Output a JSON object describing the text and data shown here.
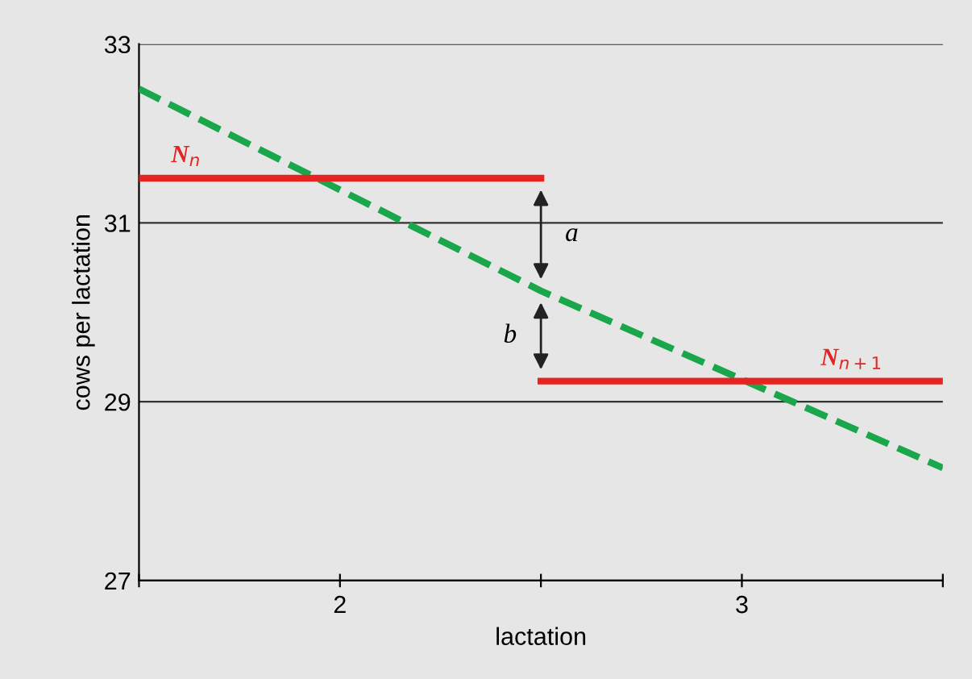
{
  "chart_data": {
    "type": "line",
    "xlabel": "lactation",
    "ylabel": "cows per lactation",
    "xlim": [
      1.5,
      3.5
    ],
    "xticks": [
      {
        "value": 1.5,
        "label": null
      },
      2,
      {
        "value": 2.5,
        "label": null
      },
      3,
      {
        "value": 3.5,
        "label": null
      }
    ],
    "ylim": [
      27,
      33
    ],
    "yticks": [
      27,
      29,
      31,
      33
    ],
    "grid": "y",
    "marker": "none",
    "series": [
      {
        "x": [
          1.5,
          2.5,
          3.5
        ],
        "values": [
          32.5,
          30.24,
          28.26
        ],
        "color": "#1aa64a",
        "line_style": "dashed"
      },
      {
        "name": "N$_{n}$",
        "x": [
          1.5,
          2.5
        ],
        "values": [
          31.5,
          31.5
        ],
        "color": "#e52421",
        "line_style": "solid"
      },
      {
        "name": "N$_{n+1}$",
        "x": [
          2.5,
          3.5
        ],
        "values": [
          29.23,
          29.23
        ],
        "color": "#e52421",
        "line_style": "solid"
      }
    ],
    "annotations": [
      "a",
      "b"
    ]
  }
}
